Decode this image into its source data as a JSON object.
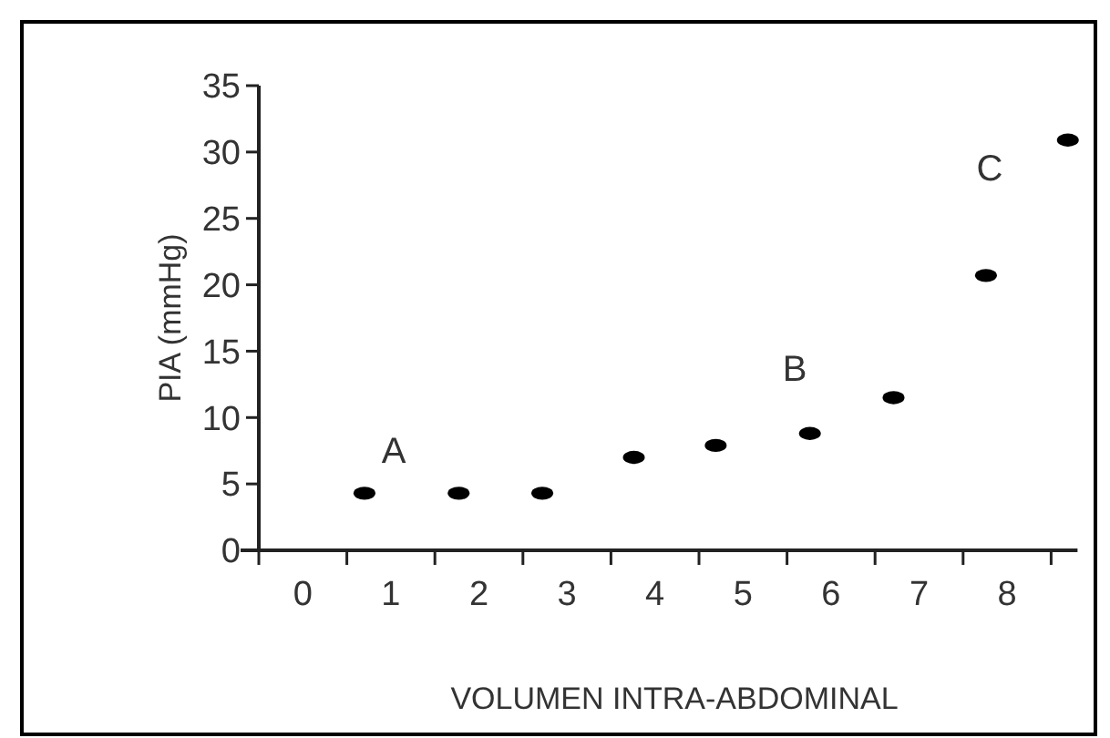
{
  "chart_data": {
    "type": "scatter",
    "xlabel": "VOLUMEN INTRA-ABDOMINAL",
    "ylabel": "PIA (mmHg)",
    "x": [
      0.7,
      1.77,
      2.72,
      3.76,
      4.69,
      5.76,
      6.71,
      7.76,
      8.69
    ],
    "values": [
      4.3,
      4.3,
      4.3,
      7,
      7.9,
      8.8,
      11.5,
      20.7,
      30.9
    ],
    "color": "#000000",
    "marker": "circle",
    "xlim": [
      -0.5,
      8.8
    ],
    "xticks": [
      {
        "value": -0.5,
        "label": null
      },
      0,
      {
        "value": 0.5,
        "label": null
      },
      1,
      {
        "value": 1.5,
        "label": null
      },
      2,
      {
        "value": 2.5,
        "label": null
      },
      3,
      {
        "value": 3.5,
        "label": null
      },
      4,
      {
        "value": 4.5,
        "label": null
      },
      5,
      {
        "value": 5.5,
        "label": null
      },
      6,
      {
        "value": 6.5,
        "label": null
      },
      7,
      {
        "value": 7.5,
        "label": null
      },
      8,
      {
        "value": 8.5,
        "label": null
      }
    ],
    "ylim": [
      0,
      35
    ],
    "yticks": [
      0,
      5,
      10,
      15,
      20,
      25,
      30,
      35
    ],
    "grid": false,
    "annotations": [
      "A",
      "B",
      "C"
    ]
  }
}
